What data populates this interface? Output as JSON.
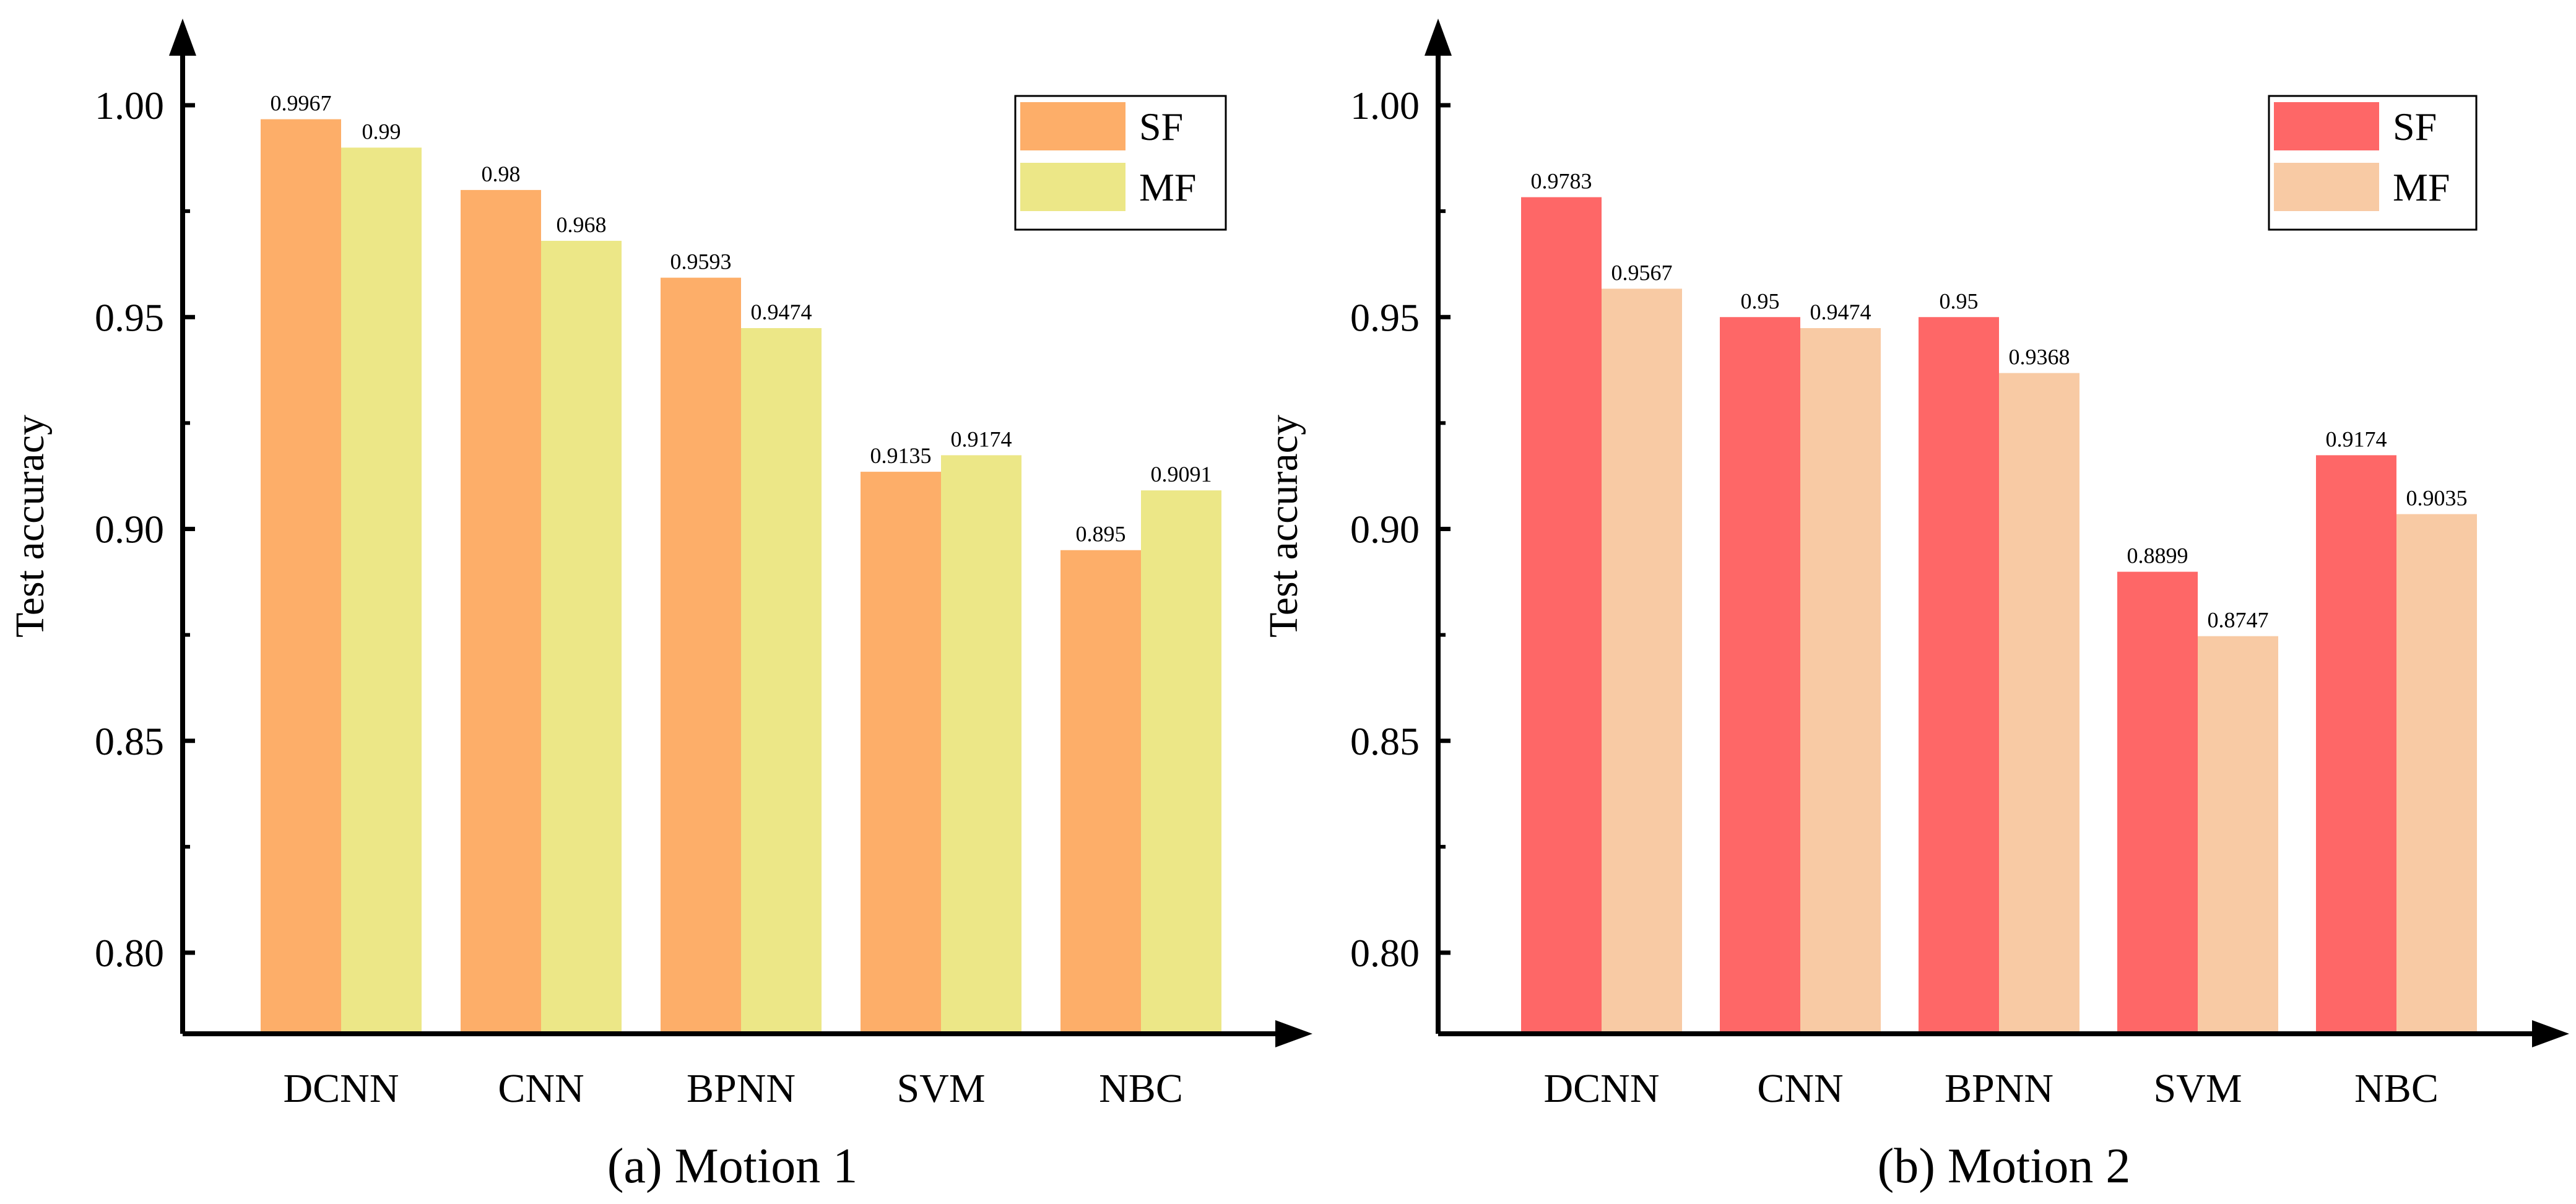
{
  "chart_data": [
    {
      "type": "bar",
      "title": "(a) Motion 1",
      "xlabel": "",
      "ylabel": "Test accuracy",
      "ylim": [
        0.78,
        1.025
      ],
      "yticks": [
        "0.80",
        "0.85",
        "0.90",
        "0.95",
        "1.00"
      ],
      "categories": [
        "DCNN",
        "CNN",
        "BPNN",
        "SVM",
        "NBC"
      ],
      "legend_position": "top-right",
      "series": [
        {
          "name": "SF",
          "color": "#FDAE69",
          "values": [
            0.9967,
            0.98,
            0.9593,
            0.9135,
            0.895
          ],
          "labels": [
            "0.9967",
            "0.98",
            "0.9593",
            "0.9135",
            "0.895"
          ]
        },
        {
          "name": "MF",
          "color": "#ECE787",
          "values": [
            0.99,
            0.968,
            0.9474,
            0.9174,
            0.9091
          ],
          "labels": [
            "0.99",
            "0.968",
            "0.9474",
            "0.9174",
            "0.9091"
          ]
        }
      ]
    },
    {
      "type": "bar",
      "title": "(b) Motion 2",
      "xlabel": "",
      "ylabel": "Test accuracy",
      "ylim": [
        0.78,
        1.025
      ],
      "yticks": [
        "0.80",
        "0.85",
        "0.90",
        "0.95",
        "1.00"
      ],
      "categories": [
        "DCNN",
        "CNN",
        "BPNN",
        "SVM",
        "NBC"
      ],
      "legend_position": "top-right",
      "series": [
        {
          "name": "SF",
          "color": "#FE6767",
          "values": [
            0.9783,
            0.95,
            0.95,
            0.8899,
            0.9174
          ],
          "labels": [
            "0.9783",
            "0.95",
            "0.95",
            "0.8899",
            "0.9174"
          ]
        },
        {
          "name": "MF",
          "color": "#F8CAA4",
          "values": [
            0.9567,
            0.9474,
            0.9368,
            0.8747,
            0.9035
          ],
          "labels": [
            "0.9567",
            "0.9474",
            "0.9368",
            "0.8747",
            "0.9035"
          ]
        }
      ]
    }
  ]
}
